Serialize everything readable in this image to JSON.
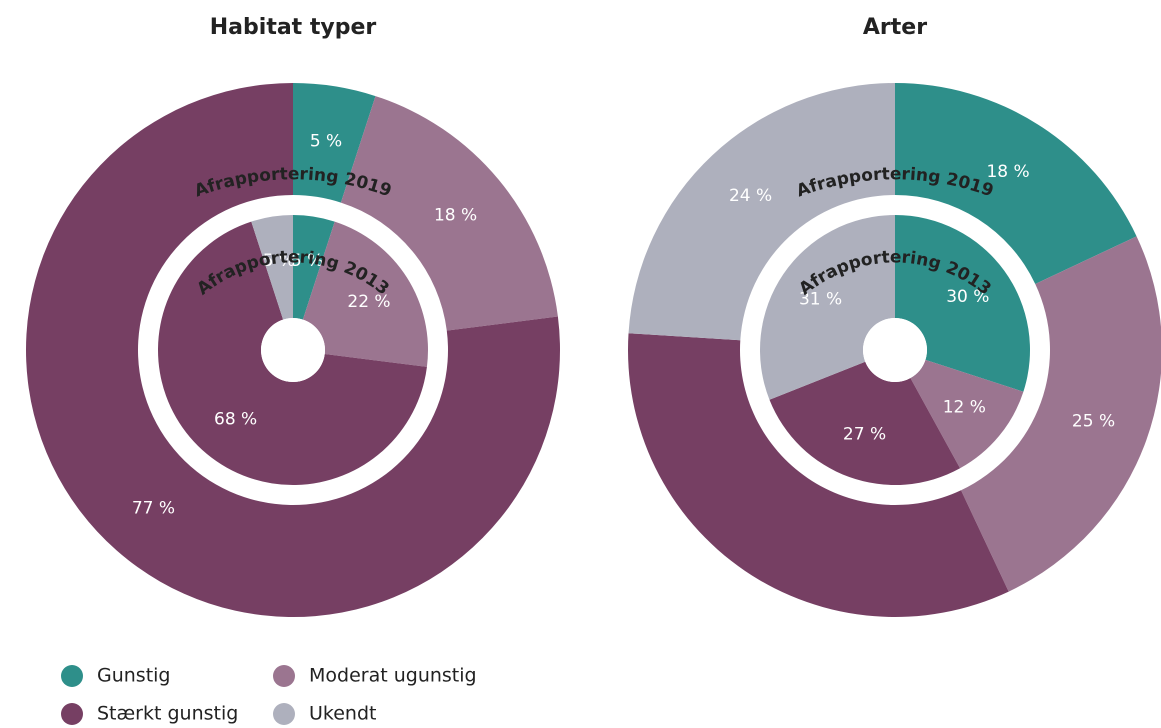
{
  "chart_data": [
    {
      "type": "donut",
      "title": "Habitat typer",
      "categories": [
        "Gunstig",
        "Moderat ugunstig",
        "Stærkt gunstig",
        "Ukendt"
      ],
      "colors": [
        "#2e8f8a",
        "#9b7590",
        "#763f63",
        "#aeb0bd"
      ],
      "rings": [
        {
          "name": "Afrapportering 2019",
          "values": [
            5,
            18,
            77,
            null
          ],
          "value_labels": [
            "5 %",
            "18 %",
            "77 %",
            null
          ]
        },
        {
          "name": "Afrapportering 2013",
          "values": [
            5,
            22,
            68,
            5
          ],
          "value_labels": [
            "5 %",
            "22 %",
            "68 %",
            "5 %"
          ]
        }
      ]
    },
    {
      "type": "donut",
      "title": "Arter",
      "categories": [
        "Gunstig",
        "Moderat ugunstig",
        "Stærkt gunstig",
        "Ukendt"
      ],
      "colors": [
        "#2e8f8a",
        "#9b7590",
        "#763f63",
        "#aeb0bd"
      ],
      "rings": [
        {
          "name": "Afrapportering 2019",
          "values": [
            18,
            25,
            33,
            24
          ],
          "value_labels": [
            "18 %",
            "25 %",
            null,
            "24 %"
          ]
        },
        {
          "name": "Afrapportering 2013",
          "values": [
            30,
            12,
            27,
            31
          ],
          "value_labels": [
            "30 %",
            "12 %",
            "27 %",
            "31 %"
          ]
        }
      ]
    }
  ]
}
